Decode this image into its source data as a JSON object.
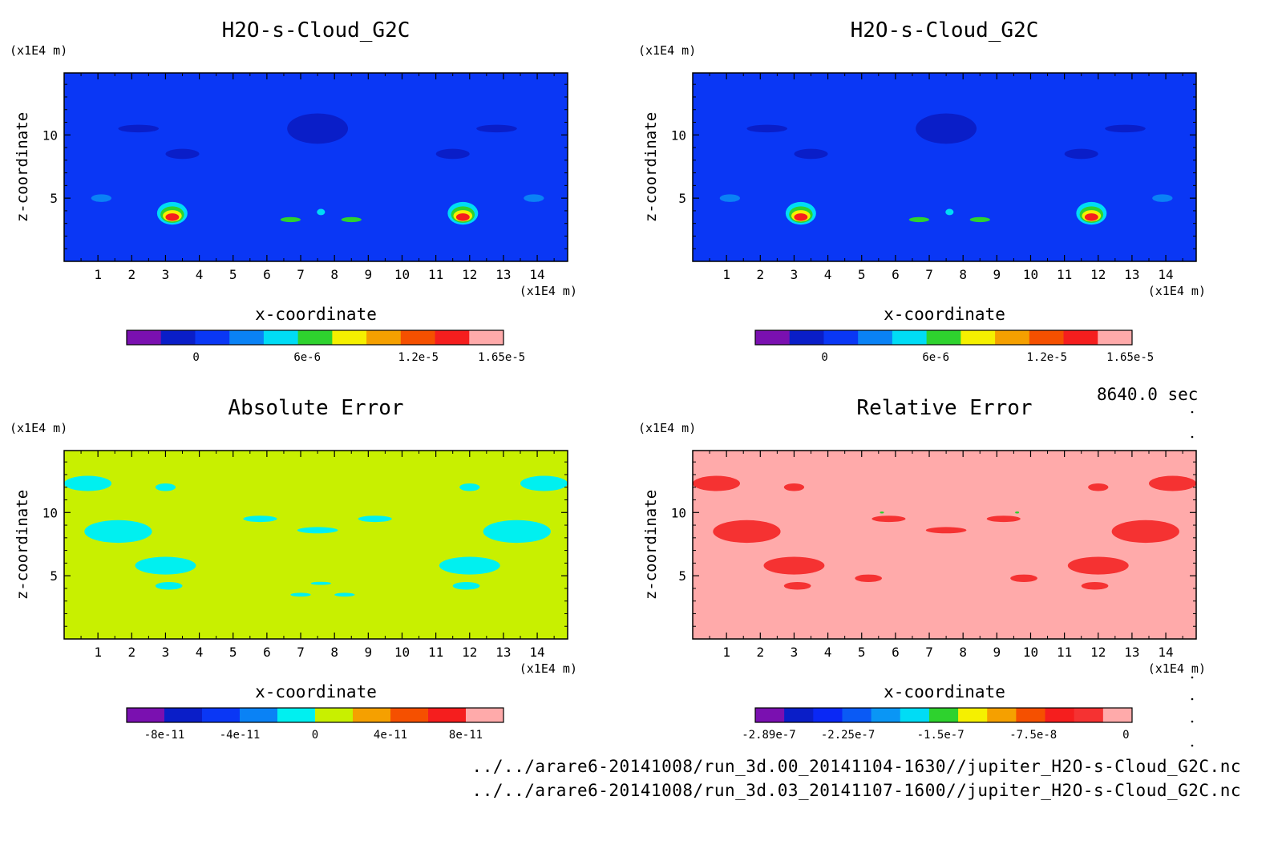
{
  "time_label": "8640.0 sec",
  "files": [
    "../../arare6-20141008/run_3d.00_20141104-1630//jupiter_H2O-s-Cloud_G2C.nc",
    "../../arare6-20141008/run_3d.03_20141107-1600//jupiter_H2O-s-Cloud_G2C.nc"
  ],
  "chart_data": [
    {
      "type": "heatmap",
      "title": "H2O-s-Cloud_G2C",
      "xlabel": "x-coordinate",
      "ylabel": "z-coordinate",
      "x_unit": "(x1E4 m)",
      "y_unit": "(x1E4 m)",
      "xlim": [
        0,
        14.9
      ],
      "ylim": [
        0,
        14.9
      ],
      "xticks": [
        "1",
        "2",
        "3",
        "4",
        "5",
        "6",
        "7",
        "8",
        "9",
        "10",
        "11",
        "12",
        "13",
        "14"
      ],
      "yticks": [
        "5",
        "10"
      ],
      "background": "#0a37f5",
      "colorbar": {
        "colors": [
          "#7a10b0",
          "#0a1ec8",
          "#0a37f5",
          "#0a82f5",
          "#00dcf5",
          "#2ed22e",
          "#f5f000",
          "#f5a000",
          "#f55000",
          "#f51e1e",
          "#ffaaaa"
        ],
        "labels": [
          "0",
          "6e-6",
          "1.2e-5",
          "1.65e-5"
        ],
        "label_positions": [
          0,
          6e-06,
          1.2e-05,
          1.65e-05
        ],
        "range": [
          -3.75e-06,
          1.66e-05
        ]
      },
      "regions": [
        {
          "x": 3.2,
          "z": 3.8,
          "rx": 0.45,
          "rz": 0.9,
          "color": "#00dcf5"
        },
        {
          "x": 3.2,
          "z": 3.7,
          "rx": 0.35,
          "rz": 0.65,
          "color": "#2ed22e"
        },
        {
          "x": 3.2,
          "z": 3.6,
          "rx": 0.28,
          "rz": 0.45,
          "color": "#f5f000"
        },
        {
          "x": 3.2,
          "z": 3.5,
          "rx": 0.2,
          "rz": 0.3,
          "color": "#f51e1e"
        },
        {
          "x": 11.8,
          "z": 3.8,
          "rx": 0.45,
          "rz": 0.9,
          "color": "#00dcf5"
        },
        {
          "x": 11.8,
          "z": 3.7,
          "rx": 0.35,
          "rz": 0.65,
          "color": "#2ed22e"
        },
        {
          "x": 11.8,
          "z": 3.6,
          "rx": 0.28,
          "rz": 0.45,
          "color": "#f5f000"
        },
        {
          "x": 11.8,
          "z": 3.5,
          "rx": 0.2,
          "rz": 0.3,
          "color": "#f51e1e"
        },
        {
          "x": 6.7,
          "z": 3.3,
          "rx": 0.3,
          "rz": 0.2,
          "color": "#2ed22e"
        },
        {
          "x": 8.5,
          "z": 3.3,
          "rx": 0.3,
          "rz": 0.2,
          "color": "#2ed22e"
        },
        {
          "x": 7.6,
          "z": 3.9,
          "rx": 0.12,
          "rz": 0.25,
          "color": "#00dcf5"
        },
        {
          "x": 1.1,
          "z": 5.0,
          "rx": 0.3,
          "rz": 0.3,
          "color": "#0a82f5"
        },
        {
          "x": 13.9,
          "z": 5.0,
          "rx": 0.3,
          "rz": 0.3,
          "color": "#0a82f5"
        },
        {
          "x": 7.5,
          "z": 10.5,
          "rx": 0.9,
          "rz": 1.2,
          "color": "#0a1ec8"
        },
        {
          "x": 3.5,
          "z": 8.5,
          "rx": 0.5,
          "rz": 0.4,
          "color": "#0a1ec8"
        },
        {
          "x": 11.5,
          "z": 8.5,
          "rx": 0.5,
          "rz": 0.4,
          "color": "#0a1ec8"
        },
        {
          "x": 2.2,
          "z": 10.5,
          "rx": 0.6,
          "rz": 0.3,
          "color": "#0a1ec8"
        },
        {
          "x": 12.8,
          "z": 10.5,
          "rx": 0.6,
          "rz": 0.3,
          "color": "#0a1ec8"
        }
      ]
    },
    {
      "type": "heatmap",
      "title": "H2O-s-Cloud_G2C",
      "xlabel": "x-coordinate",
      "ylabel": "z-coordinate",
      "x_unit": "(x1E4 m)",
      "y_unit": "(x1E4 m)",
      "xlim": [
        0,
        14.9
      ],
      "ylim": [
        0,
        14.9
      ],
      "xticks": [
        "1",
        "2",
        "3",
        "4",
        "5",
        "6",
        "7",
        "8",
        "9",
        "10",
        "11",
        "12",
        "13",
        "14"
      ],
      "yticks": [
        "5",
        "10"
      ],
      "background": "#0a37f5",
      "colorbar": {
        "colors": [
          "#7a10b0",
          "#0a1ec8",
          "#0a37f5",
          "#0a82f5",
          "#00dcf5",
          "#2ed22e",
          "#f5f000",
          "#f5a000",
          "#f55000",
          "#f51e1e",
          "#ffaaaa"
        ],
        "labels": [
          "0",
          "6e-6",
          "1.2e-5",
          "1.65e-5"
        ],
        "label_positions": [
          0,
          6e-06,
          1.2e-05,
          1.65e-05
        ],
        "range": [
          -3.75e-06,
          1.66e-05
        ]
      },
      "regions": [
        {
          "x": 3.2,
          "z": 3.8,
          "rx": 0.45,
          "rz": 0.9,
          "color": "#00dcf5"
        },
        {
          "x": 3.2,
          "z": 3.7,
          "rx": 0.35,
          "rz": 0.65,
          "color": "#2ed22e"
        },
        {
          "x": 3.2,
          "z": 3.6,
          "rx": 0.28,
          "rz": 0.45,
          "color": "#f5f000"
        },
        {
          "x": 3.2,
          "z": 3.5,
          "rx": 0.2,
          "rz": 0.3,
          "color": "#f51e1e"
        },
        {
          "x": 11.8,
          "z": 3.8,
          "rx": 0.45,
          "rz": 0.9,
          "color": "#00dcf5"
        },
        {
          "x": 11.8,
          "z": 3.7,
          "rx": 0.35,
          "rz": 0.65,
          "color": "#2ed22e"
        },
        {
          "x": 11.8,
          "z": 3.6,
          "rx": 0.28,
          "rz": 0.45,
          "color": "#f5f000"
        },
        {
          "x": 11.8,
          "z": 3.5,
          "rx": 0.2,
          "rz": 0.3,
          "color": "#f51e1e"
        },
        {
          "x": 6.7,
          "z": 3.3,
          "rx": 0.3,
          "rz": 0.2,
          "color": "#2ed22e"
        },
        {
          "x": 8.5,
          "z": 3.3,
          "rx": 0.3,
          "rz": 0.2,
          "color": "#2ed22e"
        },
        {
          "x": 7.6,
          "z": 3.9,
          "rx": 0.12,
          "rz": 0.25,
          "color": "#00dcf5"
        },
        {
          "x": 1.1,
          "z": 5.0,
          "rx": 0.3,
          "rz": 0.3,
          "color": "#0a82f5"
        },
        {
          "x": 13.9,
          "z": 5.0,
          "rx": 0.3,
          "rz": 0.3,
          "color": "#0a82f5"
        },
        {
          "x": 7.5,
          "z": 10.5,
          "rx": 0.9,
          "rz": 1.2,
          "color": "#0a1ec8"
        },
        {
          "x": 3.5,
          "z": 8.5,
          "rx": 0.5,
          "rz": 0.4,
          "color": "#0a1ec8"
        },
        {
          "x": 11.5,
          "z": 8.5,
          "rx": 0.5,
          "rz": 0.4,
          "color": "#0a1ec8"
        },
        {
          "x": 2.2,
          "z": 10.5,
          "rx": 0.6,
          "rz": 0.3,
          "color": "#0a1ec8"
        },
        {
          "x": 12.8,
          "z": 10.5,
          "rx": 0.6,
          "rz": 0.3,
          "color": "#0a1ec8"
        }
      ]
    },
    {
      "type": "heatmap",
      "title": "Absolute Error",
      "xlabel": "x-coordinate",
      "ylabel": "z-coordinate",
      "x_unit": "(x1E4 m)",
      "y_unit": "(x1E4 m)",
      "xlim": [
        0,
        14.9
      ],
      "ylim": [
        0,
        14.9
      ],
      "xticks": [
        "1",
        "2",
        "3",
        "4",
        "5",
        "6",
        "7",
        "8",
        "9",
        "10",
        "11",
        "12",
        "13",
        "14"
      ],
      "yticks": [
        "5",
        "10"
      ],
      "background": "#c8f000",
      "colorbar": {
        "colors": [
          "#7a10b0",
          "#0a1ec8",
          "#0a37f5",
          "#0a82f5",
          "#00f0f0",
          "#c8f000",
          "#f5a000",
          "#f55000",
          "#f51e1e",
          "#ffaaaa"
        ],
        "labels": [
          "-8e-11",
          "-4e-11",
          "0",
          "4e-11",
          "8e-11"
        ],
        "label_positions": [
          -8e-11,
          -4e-11,
          0,
          4e-11,
          8e-11
        ],
        "range": [
          -1e-10,
          1e-10
        ]
      },
      "regions": [
        {
          "x": 1.6,
          "z": 8.5,
          "rx": 1.0,
          "rz": 0.9,
          "color": "#00f0f0"
        },
        {
          "x": 13.4,
          "z": 8.5,
          "rx": 1.0,
          "rz": 0.9,
          "color": "#00f0f0"
        },
        {
          "x": 0.7,
          "z": 12.3,
          "rx": 0.7,
          "rz": 0.6,
          "color": "#00f0f0"
        },
        {
          "x": 14.2,
          "z": 12.3,
          "rx": 0.7,
          "rz": 0.6,
          "color": "#00f0f0"
        },
        {
          "x": 3.0,
          "z": 5.8,
          "rx": 0.9,
          "rz": 0.7,
          "color": "#00f0f0"
        },
        {
          "x": 12.0,
          "z": 5.8,
          "rx": 0.9,
          "rz": 0.7,
          "color": "#00f0f0"
        },
        {
          "x": 3.1,
          "z": 4.2,
          "rx": 0.4,
          "rz": 0.3,
          "color": "#00f0f0"
        },
        {
          "x": 11.9,
          "z": 4.2,
          "rx": 0.4,
          "rz": 0.3,
          "color": "#00f0f0"
        },
        {
          "x": 3.0,
          "z": 12.0,
          "rx": 0.3,
          "rz": 0.3,
          "color": "#00f0f0"
        },
        {
          "x": 12.0,
          "z": 12.0,
          "rx": 0.3,
          "rz": 0.3,
          "color": "#00f0f0"
        },
        {
          "x": 5.8,
          "z": 9.5,
          "rx": 0.5,
          "rz": 0.25,
          "color": "#00f0f0"
        },
        {
          "x": 9.2,
          "z": 9.5,
          "rx": 0.5,
          "rz": 0.25,
          "color": "#00f0f0"
        },
        {
          "x": 7.5,
          "z": 8.6,
          "rx": 0.6,
          "rz": 0.25,
          "color": "#00f0f0"
        },
        {
          "x": 7.0,
          "z": 3.5,
          "rx": 0.3,
          "rz": 0.15,
          "color": "#00f0f0"
        },
        {
          "x": 8.3,
          "z": 3.5,
          "rx": 0.3,
          "rz": 0.15,
          "color": "#00f0f0"
        },
        {
          "x": 7.6,
          "z": 4.4,
          "rx": 0.3,
          "rz": 0.12,
          "color": "#00f0f0"
        }
      ]
    },
    {
      "type": "heatmap",
      "title": "Relative Error",
      "xlabel": "x-coordinate",
      "ylabel": "z-coordinate",
      "x_unit": "(x1E4 m)",
      "y_unit": "(x1E4 m)",
      "xlim": [
        0,
        14.9
      ],
      "ylim": [
        0,
        14.9
      ],
      "xticks": [
        "1",
        "2",
        "3",
        "4",
        "5",
        "6",
        "7",
        "8",
        "9",
        "10",
        "11",
        "12",
        "13",
        "14"
      ],
      "yticks": [
        "5",
        "10"
      ],
      "background": "#ffaaaa",
      "colorbar": {
        "colors": [
          "#7a10b0",
          "#0a1ec8",
          "#0a28f5",
          "#0a5af5",
          "#0a96f5",
          "#00dcf5",
          "#2ed22e",
          "#f5f000",
          "#f5a000",
          "#f55000",
          "#f51e1e",
          "#f53232",
          "#ffaaaa"
        ],
        "labels": [
          "-2.89e-7",
          "-2.25e-7",
          "-1.5e-7",
          "-7.5e-8",
          "0"
        ],
        "label_positions": [
          -2.89e-07,
          -2.25e-07,
          -1.5e-07,
          -7.5e-08,
          0
        ],
        "range": [
          -3e-07,
          5e-09
        ]
      },
      "regions": [
        {
          "x": 1.6,
          "z": 8.5,
          "rx": 1.0,
          "rz": 0.9,
          "color": "#f53232"
        },
        {
          "x": 13.4,
          "z": 8.5,
          "rx": 1.0,
          "rz": 0.9,
          "color": "#f53232"
        },
        {
          "x": 0.7,
          "z": 12.3,
          "rx": 0.7,
          "rz": 0.6,
          "color": "#f53232"
        },
        {
          "x": 14.2,
          "z": 12.3,
          "rx": 0.7,
          "rz": 0.6,
          "color": "#f53232"
        },
        {
          "x": 3.0,
          "z": 5.8,
          "rx": 0.9,
          "rz": 0.7,
          "color": "#f53232"
        },
        {
          "x": 12.0,
          "z": 5.8,
          "rx": 0.9,
          "rz": 0.7,
          "color": "#f53232"
        },
        {
          "x": 3.1,
          "z": 4.2,
          "rx": 0.4,
          "rz": 0.3,
          "color": "#f53232"
        },
        {
          "x": 11.9,
          "z": 4.2,
          "rx": 0.4,
          "rz": 0.3,
          "color": "#f53232"
        },
        {
          "x": 3.0,
          "z": 12.0,
          "rx": 0.3,
          "rz": 0.3,
          "color": "#f53232"
        },
        {
          "x": 12.0,
          "z": 12.0,
          "rx": 0.3,
          "rz": 0.3,
          "color": "#f53232"
        },
        {
          "x": 5.8,
          "z": 9.5,
          "rx": 0.5,
          "rz": 0.25,
          "color": "#f53232"
        },
        {
          "x": 9.2,
          "z": 9.5,
          "rx": 0.5,
          "rz": 0.25,
          "color": "#f53232"
        },
        {
          "x": 7.5,
          "z": 8.6,
          "rx": 0.6,
          "rz": 0.25,
          "color": "#f53232"
        },
        {
          "x": 5.2,
          "z": 4.8,
          "rx": 0.4,
          "rz": 0.3,
          "color": "#f53232"
        },
        {
          "x": 9.8,
          "z": 4.8,
          "rx": 0.4,
          "rz": 0.3,
          "color": "#f53232"
        },
        {
          "x": 5.6,
          "z": 10.0,
          "rx": 0.06,
          "rz": 0.08,
          "color": "#2ed22e"
        },
        {
          "x": 9.6,
          "z": 10.0,
          "rx": 0.06,
          "rz": 0.08,
          "color": "#2ed22e"
        }
      ]
    }
  ]
}
